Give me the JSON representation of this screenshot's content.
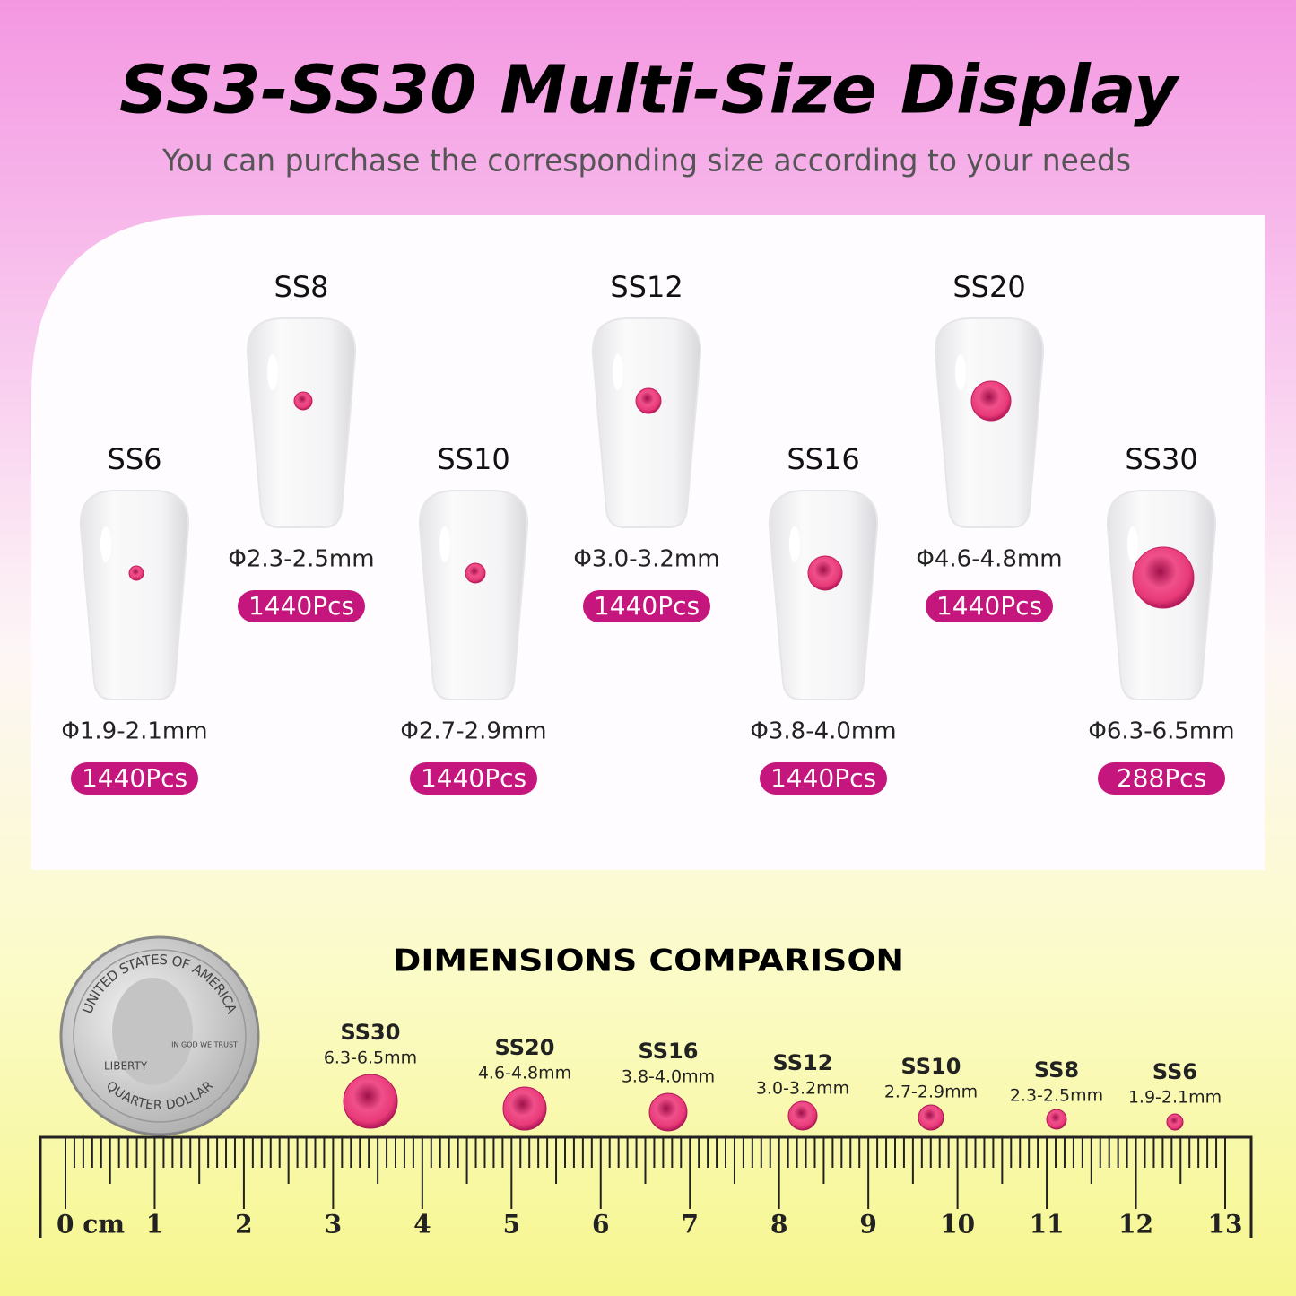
{
  "header": {
    "title": "SS3-SS30 Multi-Size Display",
    "subtitle": "You can purchase the corresponding size according to your needs"
  },
  "nails": [
    {
      "label": "SS6",
      "size": "Φ1.9-2.1mm",
      "count": "1440Pcs"
    },
    {
      "label": "SS8",
      "size": "Φ2.3-2.5mm",
      "count": "1440Pcs"
    },
    {
      "label": "SS10",
      "size": "Φ2.7-2.9mm",
      "count": "1440Pcs"
    },
    {
      "label": "SS12",
      "size": "Φ3.0-3.2mm",
      "count": "1440Pcs"
    },
    {
      "label": "SS16",
      "size": "Φ3.8-4.0mm",
      "count": "1440Pcs"
    },
    {
      "label": "SS20",
      "size": "Φ4.6-4.8mm",
      "count": "1440Pcs"
    },
    {
      "label": "SS30",
      "size": "Φ6.3-6.5mm",
      "count": "288Pcs"
    }
  ],
  "comparison": {
    "title": "DIMENSIONS COMPARISON",
    "items": [
      {
        "label": "SS30",
        "size": "6.3-6.5mm"
      },
      {
        "label": "SS20",
        "size": "4.6-4.8mm"
      },
      {
        "label": "SS16",
        "size": "3.8-4.0mm"
      },
      {
        "label": "SS12",
        "size": "3.0-3.2mm"
      },
      {
        "label": "SS10",
        "size": "2.7-2.9mm"
      },
      {
        "label": "SS8",
        "size": "2.3-2.5mm"
      },
      {
        "label": "SS6",
        "size": "1.9-2.1mm"
      }
    ]
  },
  "coin": {
    "top": "UNITED STATES OF AMERICA",
    "liberty": "LIBERTY",
    "motto": "IN GOD WE TRUST",
    "bottom": "QUARTER DOLLAR"
  },
  "ruler": {
    "labels": [
      "0 cm",
      "1",
      "2",
      "3",
      "4",
      "5",
      "6",
      "7",
      "8",
      "9",
      "10",
      "11",
      "12",
      "13"
    ]
  }
}
